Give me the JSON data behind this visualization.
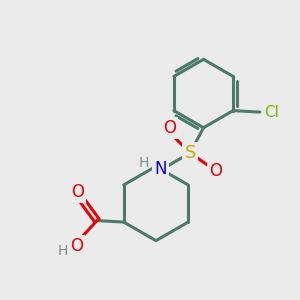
{
  "bg_color": "#ebebeb",
  "bond_color": "#4a7a6a",
  "bond_width": 2.2,
  "atom_colors": {
    "N": "#0000ee",
    "O": "#ee0000",
    "S": "#ccaa00",
    "Cl": "#77bb00",
    "H_gray": "#7a9090"
  }
}
